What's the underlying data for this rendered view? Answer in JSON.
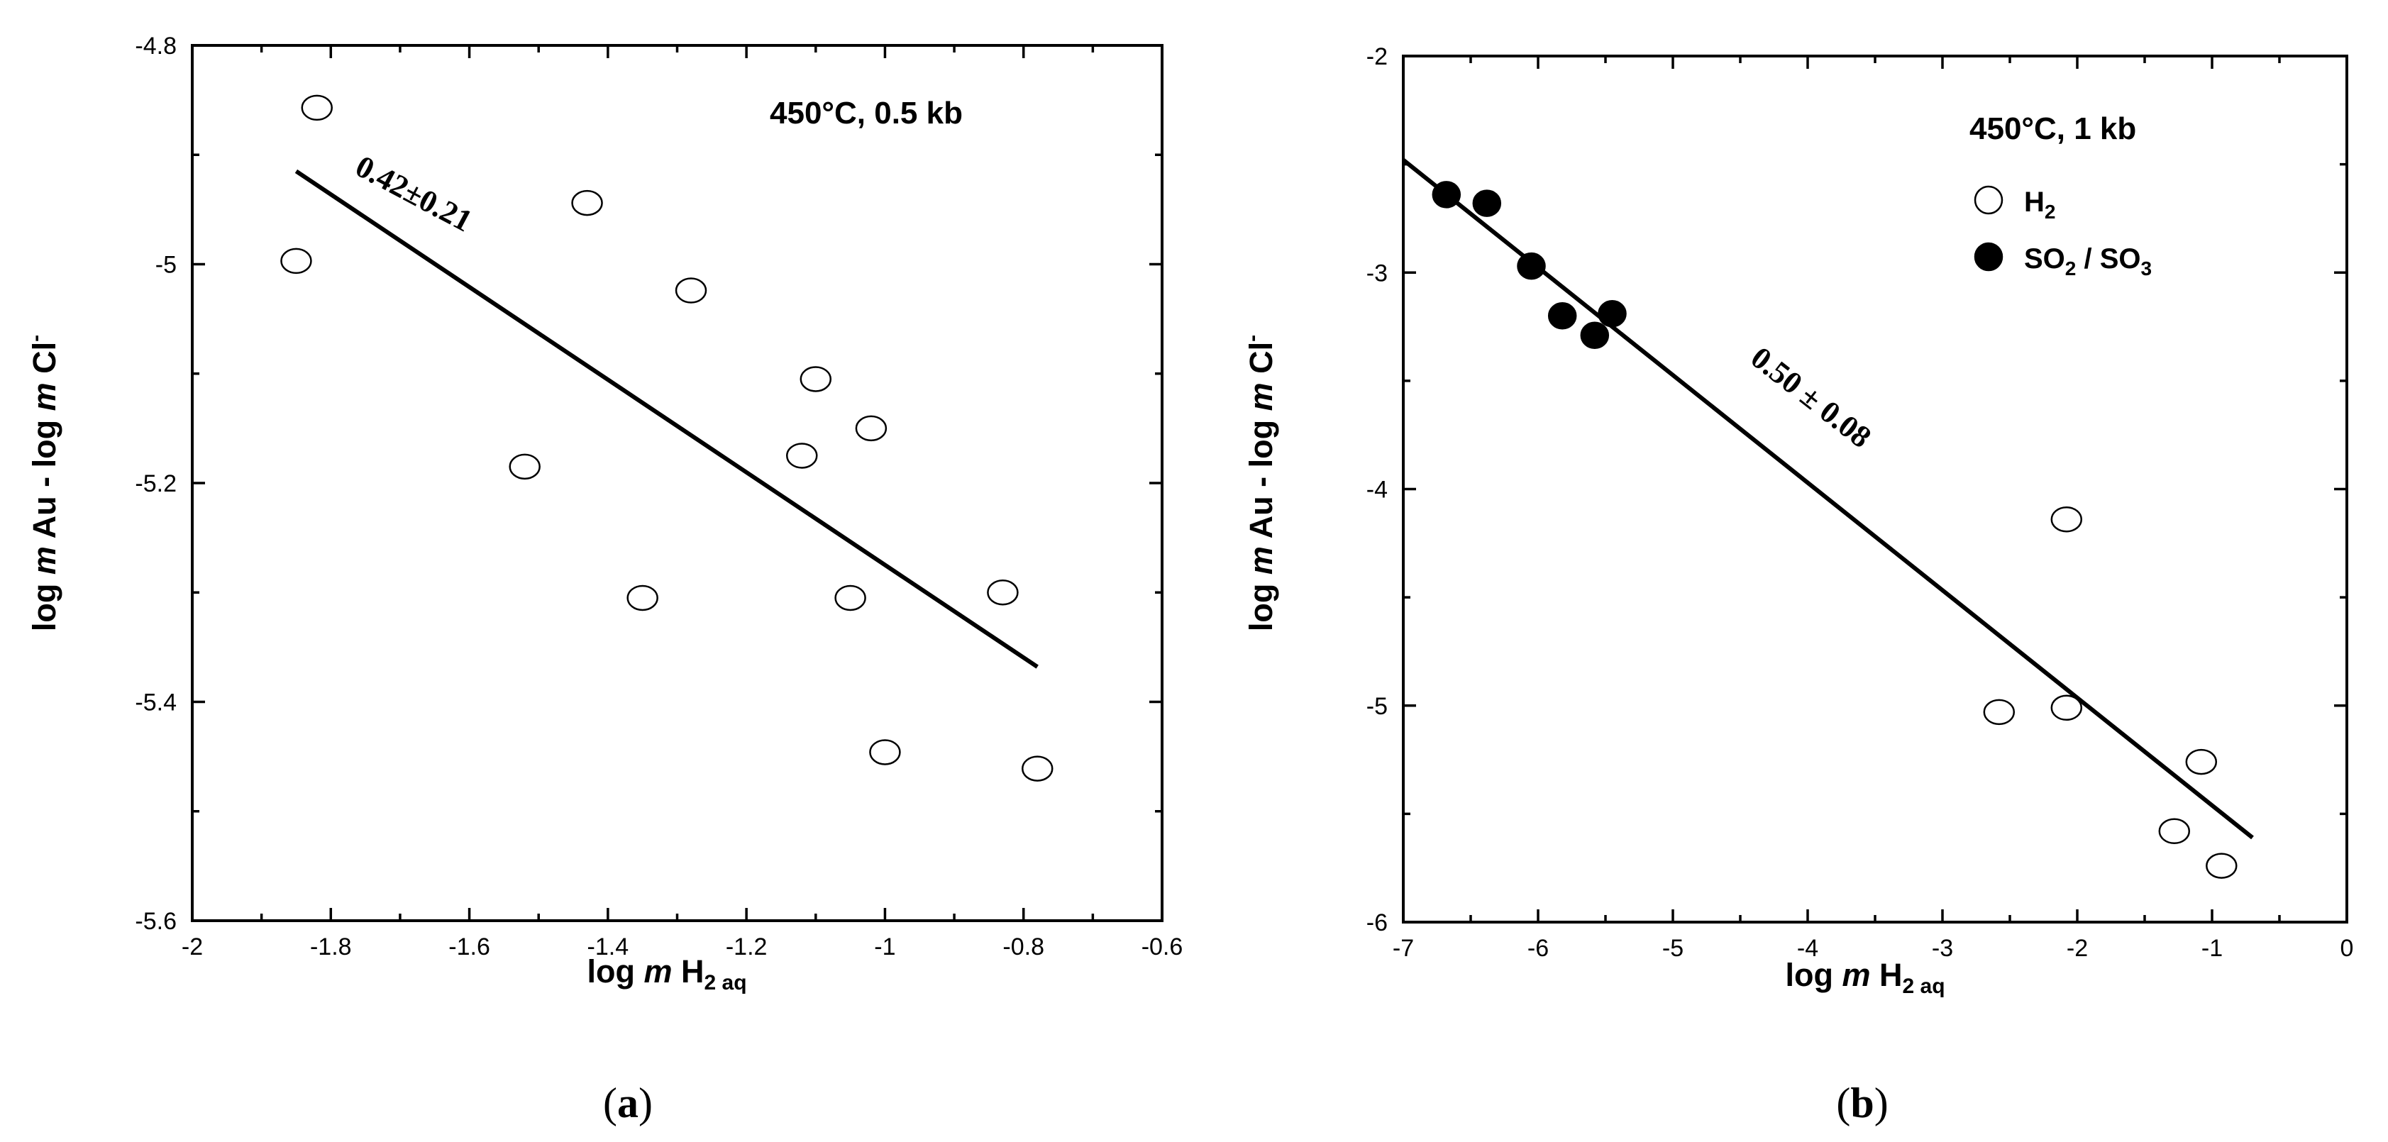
{
  "chart_data": [
    {
      "type": "scatter",
      "panel_label": "a",
      "condition_label": "450°C, 0.5 kb",
      "xlabel": "log m H2 aq",
      "ylabel": "log m Au - log m Cl⁻",
      "xlim": [
        -2.0,
        -0.6
      ],
      "ylim": [
        -5.6,
        -4.8
      ],
      "x_ticks": [
        -2,
        -1.8,
        -1.6,
        -1.4,
        -1.2,
        -1,
        -0.8,
        -0.6
      ],
      "x_tick_labels": [
        "-2",
        "-1.8",
        "-1.6",
        "-1.4",
        "-1.2",
        "-1",
        "-0.8",
        "-0.6"
      ],
      "y_ticks": [
        -5.6,
        -5.4,
        -5.2,
        -5,
        -4.8
      ],
      "y_tick_labels": [
        "-5.6",
        "-5.4",
        "-5.2",
        "-5",
        "-4.8"
      ],
      "series": [
        {
          "name": "H2",
          "marker": "open-circle",
          "x": [
            -1.82,
            -1.85,
            -1.43,
            -1.28,
            -1.1,
            -1.12,
            -1.02,
            -1.52,
            -1.35,
            -1.05,
            -0.83,
            -1.0,
            -0.78
          ],
          "y": [
            -4.857,
            -4.997,
            -4.944,
            -5.024,
            -5.105,
            -5.175,
            -5.15,
            -5.185,
            -5.305,
            -5.305,
            -5.3,
            -5.446,
            -5.461
          ]
        }
      ],
      "fit_line": {
        "x": [
          -1.85,
          -0.78
        ],
        "y": [
          -4.915,
          -5.368
        ],
        "label": "0.42±0.21"
      }
    },
    {
      "type": "scatter",
      "panel_label": "b",
      "condition_label": "450°C, 1 kb",
      "xlabel": "log m H2 aq",
      "ylabel": "log m Au - log m Cl⁻",
      "xlim": [
        -7,
        0
      ],
      "ylim": [
        -6,
        -2
      ],
      "x_ticks": [
        -7,
        -6,
        -5,
        -4,
        -3,
        -2,
        -1,
        0
      ],
      "x_tick_labels": [
        "-7",
        "-6",
        "-5",
        "-4",
        "-3",
        "-2",
        "-1",
        "0"
      ],
      "y_ticks": [
        -6,
        -5,
        -4,
        -3,
        -2
      ],
      "y_tick_labels": [
        "-6",
        "-5",
        "-4",
        "-3",
        "-2"
      ],
      "legend": [
        {
          "symbol": "open-circle",
          "text": "H",
          "sub": "2"
        },
        {
          "symbol": "filled-circle",
          "text": "SO",
          "sub": "2",
          "text2": " / SO",
          "sub2": "3"
        }
      ],
      "series": [
        {
          "name": "H2",
          "marker": "open-circle",
          "x": [
            -2.08,
            -2.58,
            -2.08,
            -1.08,
            -1.28,
            -0.93
          ],
          "y": [
            -4.14,
            -5.03,
            -5.01,
            -5.26,
            -5.58,
            -5.74
          ]
        },
        {
          "name": "SO2 / SO3",
          "marker": "filled-circle",
          "x": [
            -6.68,
            -6.38,
            -6.05,
            -5.82,
            -5.58,
            -5.45
          ],
          "y": [
            -2.64,
            -2.68,
            -2.97,
            -3.2,
            -3.29,
            -3.19
          ]
        }
      ],
      "fit_line": {
        "x": [
          -7.0,
          -0.7
        ],
        "y": [
          -2.48,
          -5.61
        ],
        "label": "0.50 ± 0.08"
      }
    }
  ]
}
